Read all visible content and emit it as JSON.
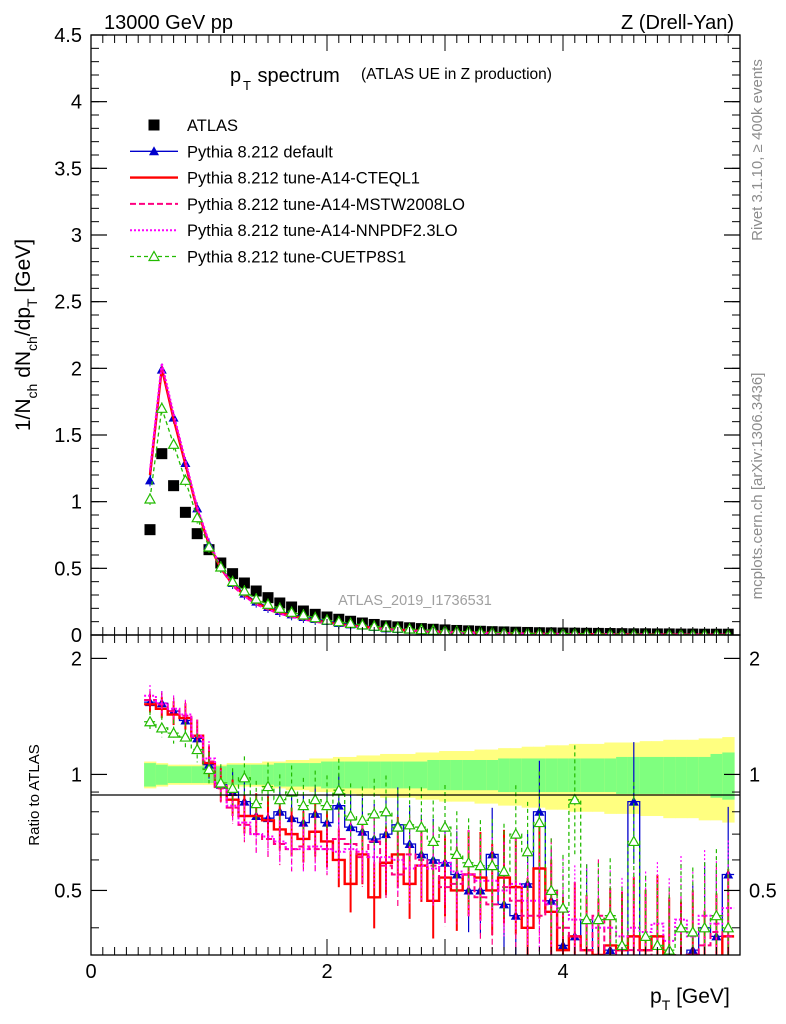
{
  "header": {
    "left": "13000 GeV pp",
    "right": "Z (Drell-Yan)"
  },
  "side": {
    "rivet": "Rivet 3.1.10, ≥ 400k events",
    "mcplots": "mcplots.cern.ch [arXiv:1306.3436]"
  },
  "analysis_id": "ATLAS_2019_I1736531",
  "colors": {
    "data": "#000000",
    "default": "#0000cc",
    "cteql1": "#ff0000",
    "mstw": "#ff0080",
    "nnpdf": "#ff00ff",
    "cuetp8s1": "#22bb00",
    "band_inner": "#7fff7f",
    "band_outer": "#ffff80"
  },
  "chart_data": [
    {
      "type": "scatter",
      "panel": "main",
      "title_main": "p",
      "title_sub": "T",
      "title_rest": " spectrum",
      "title_note": "(ATLAS UE in Z production)",
      "ylabel": "1/N_ch dN_ch/dp_T [GeV]",
      "ylim": [
        0,
        4.5
      ],
      "yticks": [
        "0",
        "0.5",
        "1",
        "1.5",
        "2",
        "2.5",
        "3",
        "3.5",
        "4",
        "4.5"
      ],
      "legend": [
        {
          "key": "data",
          "label": "ATLAS"
        },
        {
          "key": "default",
          "label": "Pythia 8.212 default"
        },
        {
          "key": "cteql1",
          "label": "Pythia 8.212 tune-A14-CTEQL1"
        },
        {
          "key": "mstw",
          "label": "Pythia 8.212 tune-A14-MSTW2008LO"
        },
        {
          "key": "nnpdf",
          "label": "Pythia 8.212 tune-A14-NNPDF2.3LO"
        },
        {
          "key": "cuetp8s1",
          "label": "Pythia 8.212 tune-CUETP8S1"
        }
      ],
      "x": [
        0.5,
        0.6,
        0.7,
        0.8,
        0.9,
        1.0,
        1.1,
        1.2,
        1.3,
        1.4,
        1.5,
        1.6,
        1.7,
        1.8,
        1.9,
        2.0,
        2.1,
        2.2,
        2.3,
        2.4,
        2.5,
        2.6,
        2.7,
        2.8,
        2.9,
        3.0,
        3.1,
        3.2,
        3.3,
        3.4,
        3.5,
        3.6,
        3.7,
        3.8,
        3.9,
        4.0,
        4.1,
        4.2,
        4.3,
        4.4,
        4.5,
        4.6,
        4.7,
        4.8,
        4.9,
        5.0,
        5.1,
        5.2,
        5.3,
        5.4
      ],
      "series": [
        {
          "key": "data",
          "name": "ATLAS",
          "values": [
            0.79,
            1.36,
            1.12,
            0.92,
            0.76,
            0.64,
            0.54,
            0.46,
            0.39,
            0.33,
            0.28,
            0.24,
            0.21,
            0.18,
            0.155,
            0.135,
            0.118,
            0.103,
            0.09,
            0.079,
            0.069,
            0.061,
            0.054,
            0.048,
            0.043,
            0.038,
            0.034,
            0.031,
            0.028,
            0.025,
            0.023,
            0.021,
            0.019,
            0.017,
            0.016,
            0.015,
            0.014,
            0.013,
            0.012,
            0.011,
            0.01,
            0.009,
            0.009,
            0.008,
            0.008,
            0.007,
            0.007,
            0.006,
            0.006,
            0.006
          ]
        },
        {
          "key": "default",
          "name": "Pythia 8.212 default",
          "values": [
            1.16,
            1.99,
            1.63,
            1.29,
            0.95,
            0.68,
            0.51,
            0.39,
            0.31,
            0.25,
            0.21,
            0.18,
            0.155,
            0.135,
            0.12,
            0.105,
            0.09,
            0.08,
            0.07,
            0.06,
            0.05,
            0.045,
            0.04,
            0.035,
            0.03,
            0.026,
            0.023,
            0.02,
            0.018,
            0.016,
            0.014,
            0.012,
            0.011,
            0.01,
            0.009,
            0.008,
            0.007,
            0.006,
            0.006,
            0.005,
            0.005,
            0.004,
            0.004,
            0.004,
            0.003,
            0.003,
            0.003,
            0.003,
            0.002,
            0.003
          ]
        },
        {
          "key": "cteql1",
          "name": "Pythia 8.212 tune-A14-CTEQL1",
          "values": [
            1.2,
            2.0,
            1.62,
            1.28,
            0.94,
            0.68,
            0.5,
            0.38,
            0.3,
            0.24,
            0.2,
            0.17,
            0.145,
            0.125,
            0.108,
            0.094,
            0.08,
            0.07,
            0.062,
            0.053,
            0.046,
            0.04,
            0.035,
            0.031,
            0.027,
            0.024,
            0.021,
            0.019,
            0.017,
            0.015,
            0.013,
            0.012,
            0.011,
            0.009,
            0.008,
            0.007,
            0.007,
            0.006,
            0.005,
            0.005,
            0.004,
            0.004,
            0.004,
            0.003,
            0.003,
            0.003,
            0.003,
            0.002,
            0.002,
            0.002
          ]
        },
        {
          "key": "mstw",
          "name": "Pythia 8.212 tune-A14-MSTW2008LO",
          "values": [
            1.22,
            2.02,
            1.64,
            1.3,
            0.95,
            0.69,
            0.5,
            0.37,
            0.29,
            0.23,
            0.19,
            0.16,
            0.135,
            0.117,
            0.1,
            0.087,
            0.075,
            0.066,
            0.058,
            0.05,
            0.044,
            0.038,
            0.033,
            0.029,
            0.026,
            0.023,
            0.02,
            0.018,
            0.016,
            0.014,
            0.012,
            0.011,
            0.01,
            0.009,
            0.008,
            0.007,
            0.006,
            0.006,
            0.005,
            0.005,
            0.004,
            0.004,
            0.003,
            0.003,
            0.003,
            0.003,
            0.002,
            0.002,
            0.002,
            0.002
          ]
        },
        {
          "key": "nnpdf",
          "name": "Pythia 8.212 tune-A14-NNPDF2.3LO",
          "values": [
            1.24,
            2.04,
            1.66,
            1.31,
            0.96,
            0.7,
            0.51,
            0.38,
            0.29,
            0.23,
            0.19,
            0.16,
            0.135,
            0.116,
            0.1,
            0.086,
            0.074,
            0.065,
            0.057,
            0.049,
            0.043,
            0.037,
            0.032,
            0.028,
            0.025,
            0.022,
            0.019,
            0.017,
            0.015,
            0.014,
            0.012,
            0.011,
            0.01,
            0.009,
            0.008,
            0.007,
            0.006,
            0.006,
            0.005,
            0.005,
            0.004,
            0.004,
            0.003,
            0.003,
            0.003,
            0.003,
            0.002,
            0.002,
            0.002,
            0.002
          ]
        },
        {
          "key": "cuetp8s1",
          "name": "Pythia 8.212 tune-CUETP8S1",
          "values": [
            1.02,
            1.7,
            1.43,
            1.16,
            0.88,
            0.66,
            0.51,
            0.4,
            0.33,
            0.27,
            0.23,
            0.2,
            0.17,
            0.15,
            0.13,
            0.112,
            0.1,
            0.087,
            0.076,
            0.066,
            0.058,
            0.051,
            0.045,
            0.04,
            0.035,
            0.031,
            0.027,
            0.024,
            0.021,
            0.019,
            0.017,
            0.015,
            0.013,
            0.012,
            0.011,
            0.01,
            0.011,
            0.008,
            0.007,
            0.006,
            0.006,
            0.005,
            0.005,
            0.004,
            0.004,
            0.004,
            0.003,
            0.003,
            0.003,
            0.003
          ]
        }
      ]
    },
    {
      "type": "line",
      "panel": "ratio",
      "ylabel": "Ratio to ATLAS",
      "xlabel": "p_T [GeV]",
      "xlim": [
        0,
        5.5
      ],
      "ylim": [
        0.34,
        2.3
      ],
      "xticks": [
        "0",
        "2",
        "4"
      ],
      "yticks": [
        "0.5",
        "1",
        "2"
      ],
      "band_inner": [
        0.07,
        0.06,
        0.05,
        0.05,
        0.05,
        0.05,
        0.05,
        0.06,
        0.06,
        0.06,
        0.06,
        0.07,
        0.07,
        0.07,
        0.07,
        0.08,
        0.08,
        0.08,
        0.08,
        0.08,
        0.08,
        0.08,
        0.08,
        0.08,
        0.09,
        0.09,
        0.09,
        0.09,
        0.09,
        0.09,
        0.1,
        0.1,
        0.1,
        0.1,
        0.1,
        0.1,
        0.1,
        0.1,
        0.1,
        0.1,
        0.11,
        0.11,
        0.11,
        0.11,
        0.11,
        0.11,
        0.11,
        0.11,
        0.13,
        0.14
      ],
      "band_outer": [
        0.08,
        0.07,
        0.06,
        0.06,
        0.06,
        0.06,
        0.06,
        0.07,
        0.07,
        0.07,
        0.08,
        0.08,
        0.09,
        0.09,
        0.1,
        0.1,
        0.11,
        0.11,
        0.12,
        0.12,
        0.13,
        0.13,
        0.13,
        0.14,
        0.14,
        0.15,
        0.15,
        0.15,
        0.16,
        0.16,
        0.17,
        0.17,
        0.18,
        0.18,
        0.19,
        0.19,
        0.2,
        0.2,
        0.2,
        0.21,
        0.21,
        0.21,
        0.22,
        0.22,
        0.23,
        0.23,
        0.23,
        0.24,
        0.24,
        0.25
      ],
      "series": [
        {
          "key": "default",
          "values": [
            1.54,
            1.53,
            1.46,
            1.38,
            1.24,
            1.06,
            0.94,
            0.9,
            0.85,
            0.78,
            0.77,
            0.8,
            0.77,
            0.75,
            0.79,
            0.75,
            0.83,
            0.73,
            0.71,
            0.68,
            0.7,
            0.74,
            0.66,
            0.62,
            0.6,
            0.59,
            0.55,
            0.5,
            0.5,
            0.62,
            0.46,
            0.43,
            0.52,
            0.8,
            0.47,
            0.36,
            0.38,
            0.42,
            0.33,
            0.35,
            0.33,
            0.85,
            0.33,
            0.33,
            0.33,
            0.31,
            0.35,
            0.4,
            0.38,
            0.55
          ]
        },
        {
          "key": "cteql1",
          "values": [
            1.52,
            1.48,
            1.43,
            1.4,
            1.26,
            1.07,
            0.93,
            0.86,
            0.78,
            0.78,
            0.76,
            0.72,
            0.7,
            0.68,
            0.71,
            0.67,
            0.6,
            0.52,
            0.62,
            0.48,
            0.59,
            0.62,
            0.52,
            0.58,
            0.47,
            0.54,
            0.5,
            0.55,
            0.54,
            0.5,
            0.54,
            0.51,
            0.4,
            0.57,
            0.44,
            0.35,
            0.38,
            0.35,
            0.34,
            0.36,
            0.35,
            0.38,
            0.35,
            0.38,
            0.33,
            0.32,
            0.34,
            0.3,
            0.33,
            0.38
          ]
        },
        {
          "key": "mstw",
          "values": [
            1.56,
            1.52,
            1.46,
            1.42,
            1.25,
            1.08,
            0.92,
            0.82,
            0.74,
            0.7,
            0.68,
            0.66,
            0.64,
            0.65,
            0.64,
            0.64,
            0.68,
            0.66,
            0.61,
            0.67,
            0.58,
            0.55,
            0.62,
            0.6,
            0.58,
            0.51,
            0.52,
            0.55,
            0.48,
            0.46,
            0.51,
            0.47,
            0.43,
            0.43,
            0.5,
            0.4,
            0.38,
            0.35,
            0.43,
            0.3,
            0.35,
            0.35,
            0.35,
            0.31,
            0.34,
            0.33,
            0.34,
            0.36,
            0.39,
            0.38
          ]
        },
        {
          "key": "nnpdf",
          "values": [
            1.6,
            1.53,
            1.48,
            1.43,
            1.26,
            1.1,
            0.94,
            0.83,
            0.75,
            0.7,
            0.69,
            0.67,
            0.64,
            0.64,
            0.65,
            0.64,
            0.63,
            0.64,
            0.63,
            0.61,
            0.61,
            0.6,
            0.57,
            0.58,
            0.57,
            0.59,
            0.56,
            0.55,
            0.53,
            0.53,
            0.5,
            0.52,
            0.47,
            0.47,
            0.46,
            0.44,
            0.42,
            0.42,
            0.4,
            0.4,
            0.38,
            0.4,
            0.39,
            0.41,
            0.37,
            0.42,
            0.38,
            0.43,
            0.41,
            0.45
          ]
        },
        {
          "key": "cuetp8s1",
          "values": [
            1.37,
            1.32,
            1.28,
            1.25,
            1.16,
            1.03,
            0.95,
            0.92,
            0.98,
            0.84,
            0.93,
            0.86,
            0.9,
            0.83,
            0.86,
            0.83,
            0.91,
            0.78,
            0.76,
            0.79,
            0.8,
            0.73,
            0.74,
            0.73,
            0.67,
            0.73,
            0.62,
            0.59,
            0.58,
            0.58,
            0.56,
            0.7,
            0.63,
            0.75,
            0.5,
            0.45,
            0.86,
            0.42,
            0.42,
            0.43,
            0.36,
            0.67,
            0.38,
            0.36,
            0.35,
            0.4,
            0.39,
            0.4,
            0.43,
            0.4
          ]
        }
      ]
    }
  ]
}
